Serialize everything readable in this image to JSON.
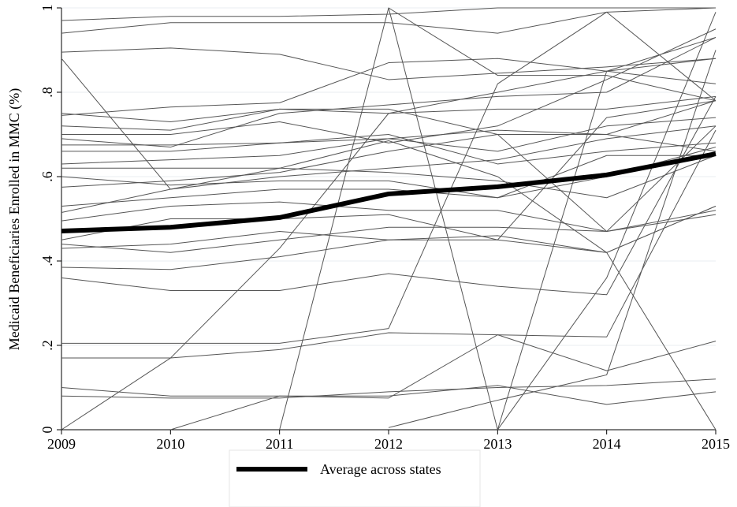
{
  "chart_data": {
    "type": "line",
    "y_label": "Medicaid Beneficiaries Enrolled in MMC (%)",
    "x": [
      2009,
      2010,
      2011,
      2012,
      2013,
      2014,
      2015
    ],
    "xlim": [
      2009,
      2015
    ],
    "xticks": [
      2009,
      2010,
      2011,
      2012,
      2013,
      2014,
      2015
    ],
    "ylim": [
      0,
      1
    ],
    "yticks": [
      0,
      {
        "value": 0.2,
        "label": ".2"
      },
      {
        "value": 0.4,
        "label": ".4"
      },
      {
        "value": 0.6,
        "label": ".6"
      },
      {
        "value": 0.8,
        "label": ".8"
      },
      1
    ],
    "grid": true,
    "legend": "bottom",
    "series": [
      {
        "color": "#555555",
        "values": [
          0.97,
          0.98,
          0.98,
          0.985,
          1,
          1,
          1
        ]
      },
      {
        "color": "#555555",
        "values": [
          0.94,
          0.965,
          0.965,
          0.965,
          0.94,
          0.99,
          1
        ]
      },
      {
        "color": "#555555",
        "values": [
          0.895,
          0.905,
          0.89,
          0.83,
          0.845,
          0.86,
          0.88
        ]
      },
      {
        "color": "#555555",
        "values": [
          0.88,
          0.57,
          0.6,
          0.62,
          0.64,
          0.69,
          0.72
        ]
      },
      {
        "color": "#555555",
        "values": [
          0.75,
          0.73,
          0.76,
          0.76,
          0.7,
          0.47,
          0.72
        ]
      },
      {
        "color": "#555555",
        "values": [
          0.745,
          0.765,
          0.775,
          0.87,
          0.88,
          0.85,
          0.82
        ]
      },
      {
        "color": "#555555",
        "values": [
          0.72,
          0.71,
          0.76,
          0.75,
          0.76,
          0.76,
          0.79
        ]
      },
      {
        "color": "#555555",
        "values": [
          0.7,
          0.7,
          0.73,
          0.68,
          0.72,
          0.83,
          0.95
        ]
      },
      {
        "color": "#555555",
        "values": [
          0.69,
          0.67,
          0.75,
          0.77,
          0.79,
          0.8,
          0.93
        ]
      },
      {
        "color": "#555555",
        "values": [
          0.675,
          0.675,
          0.68,
          0.69,
          0.71,
          0.7,
          0.78
        ]
      },
      {
        "color": "#555555",
        "values": [
          0.66,
          0.66,
          0.68,
          0.7,
          0.63,
          0.66,
          0.68
        ]
      },
      {
        "color": "#555555",
        "values": [
          0.63,
          0.64,
          0.65,
          0.69,
          0.66,
          0.72,
          0.74
        ]
      },
      {
        "color": "#555555",
        "values": [
          0.62,
          0.62,
          0.62,
          0.61,
          0.59,
          0.55,
          0.65
        ]
      },
      {
        "color": "#555555",
        "values": [
          0.6,
          0.58,
          0.59,
          0.59,
          0.55,
          0.6,
          0.67
        ]
      },
      {
        "color": "#555555",
        "values": [
          0.575,
          0.59,
          0.61,
          0.66,
          0.7,
          0.7,
          0.66
        ]
      },
      {
        "color": "#555555",
        "values": [
          0.53,
          0.55,
          0.57,
          0.57,
          0.55,
          0.65,
          0.65
        ]
      },
      {
        "color": "#555555",
        "values": [
          0.515,
          0.57,
          0.62,
          0.685,
          0.6,
          0.42,
          0
        ]
      },
      {
        "color": "#555555",
        "values": [
          0.495,
          0.53,
          0.54,
          0.52,
          0.52,
          0.47,
          0.52
        ]
      },
      {
        "color": "#555555",
        "values": [
          0.45,
          0.5,
          0.5,
          0.51,
          0.45,
          0.74,
          0.78
        ]
      },
      {
        "color": "#555555",
        "values": [
          0.44,
          0.42,
          0.45,
          0.48,
          0.48,
          0.47,
          0.51
        ]
      },
      {
        "color": "#555555",
        "values": [
          0.43,
          0.44,
          0.47,
          0.45,
          0.46,
          0.42,
          0.53
        ]
      },
      {
        "color": "#555555",
        "values": [
          0.385,
          0.38,
          0.41,
          0.45,
          0.45,
          0.42,
          0.53
        ]
      },
      {
        "color": "#555555",
        "values": [
          0.36,
          0.33,
          0.33,
          0.37,
          0.34,
          0.32,
          0.79
        ]
      },
      {
        "color": "#555555",
        "values": [
          0.205,
          0.205,
          0.205,
          0.24,
          0.82,
          0.99,
          0.78
        ]
      },
      {
        "color": "#555555",
        "values": [
          0.17,
          0.17,
          0.19,
          0.23,
          0.225,
          0.22,
          0.71
        ]
      },
      {
        "color": "#555555",
        "values": [
          0.1,
          0.08,
          0.08,
          0.08,
          0.105,
          0.06,
          0.09
        ]
      },
      {
        "color": "#555555",
        "values": [
          0.08,
          0.075,
          0.075,
          0.09,
          0.1,
          0.105,
          0.12
        ]
      },
      {
        "color": "#555555",
        "values": [
          0,
          0.17,
          0.43,
          0.75,
          0.8,
          0.85,
          0.93
        ]
      },
      {
        "color": "#555555",
        "values": [
          null,
          0,
          0.08,
          0.075,
          0.225,
          0.14,
          0.21
        ]
      },
      {
        "color": "#555555",
        "values": [
          null,
          null,
          0,
          1,
          0.84,
          0.84,
          0.78
        ]
      },
      {
        "color": "#555555",
        "values": [
          null,
          null,
          null,
          1,
          0,
          0.85,
          0.88
        ]
      },
      {
        "color": "#555555",
        "values": [
          null,
          null,
          null,
          0.005,
          0.07,
          0.13,
          0.9
        ]
      },
      {
        "color": "#555555",
        "values": [
          null,
          null,
          null,
          null,
          0,
          0.36,
          0.99
        ]
      },
      {
        "name": "Average across states",
        "color": "#000000",
        "width": 6,
        "values": [
          0.471,
          0.48,
          0.503,
          0.559,
          0.576,
          0.604,
          0.654
        ]
      }
    ]
  }
}
